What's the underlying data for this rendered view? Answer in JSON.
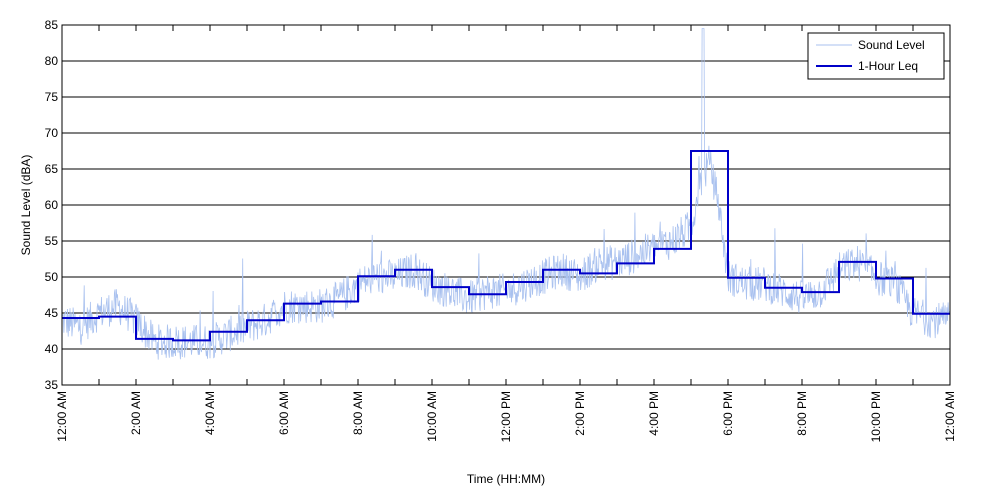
{
  "chart_data": {
    "type": "line",
    "xlabel": "Time (HH:MM)",
    "ylabel": "Sound Level (dBA)",
    "xlim": [
      0,
      24
    ],
    "ylim": [
      35,
      85
    ],
    "yticks": [
      35,
      40,
      45,
      50,
      55,
      60,
      65,
      70,
      75,
      80,
      85
    ],
    "xticks": [
      {
        "hour": 0,
        "label": "12:00 AM"
      },
      {
        "hour": 2,
        "label": "2:00 AM"
      },
      {
        "hour": 4,
        "label": "4:00 AM"
      },
      {
        "hour": 6,
        "label": "6:00 AM"
      },
      {
        "hour": 8,
        "label": "8:00 AM"
      },
      {
        "hour": 10,
        "label": "10:00 AM"
      },
      {
        "hour": 12,
        "label": "12:00 PM"
      },
      {
        "hour": 14,
        "label": "2:00 PM"
      },
      {
        "hour": 16,
        "label": "4:00 PM"
      },
      {
        "hour": 18,
        "label": "6:00 PM"
      },
      {
        "hour": 20,
        "label": "8:00 PM"
      },
      {
        "hour": 22,
        "label": "10:00 PM"
      },
      {
        "hour": 24,
        "label": "12:00 AM"
      }
    ],
    "grid": "horizontal",
    "legend": "top-right",
    "colors": {
      "sound_level": "#a9c1ef",
      "leq": "#0000c8"
    },
    "series": [
      {
        "name": "Sound Level",
        "x": [
          0,
          0.5,
          1,
          1.5,
          2,
          2.5,
          3,
          3.5,
          4,
          4.5,
          5,
          5.5,
          6,
          6.5,
          7,
          7.5,
          8,
          8.5,
          9,
          9.5,
          10,
          10.5,
          11,
          11.5,
          12,
          12.5,
          13,
          13.5,
          14,
          14.5,
          15,
          15.5,
          16,
          16.5,
          17,
          17.25,
          17.5,
          17.75,
          18,
          18.5,
          19,
          19.5,
          20,
          20.5,
          21,
          21.5,
          22,
          22.5,
          23,
          23.5,
          24
        ],
        "y": [
          44,
          43,
          45,
          46,
          44,
          41,
          41,
          41,
          41,
          42,
          43,
          44,
          46,
          46,
          46,
          47,
          49,
          50,
          50,
          51,
          49,
          48,
          47,
          48,
          48,
          49,
          50,
          51,
          50,
          52,
          52,
          53,
          54,
          55,
          57,
          63,
          66,
          60,
          50,
          49,
          49,
          48,
          47,
          48,
          51,
          52,
          50,
          49,
          45,
          44,
          44
        ]
      },
      {
        "name": "1-Hour Leq",
        "x": [
          0,
          1,
          2,
          3,
          4,
          5,
          6,
          7,
          8,
          9,
          10,
          11,
          12,
          13,
          14,
          15,
          16,
          17,
          18,
          19,
          20,
          21,
          22,
          23,
          24
        ],
        "y": [
          44.3,
          44.5,
          41.4,
          41.2,
          42.4,
          44,
          46.3,
          46.6,
          50.1,
          51,
          48.6,
          47.6,
          49.3,
          51,
          50.5,
          51.9,
          53.9,
          67.5,
          49.9,
          48.5,
          47.9,
          52.1,
          49.8,
          44.9,
          44.9
        ]
      }
    ]
  }
}
